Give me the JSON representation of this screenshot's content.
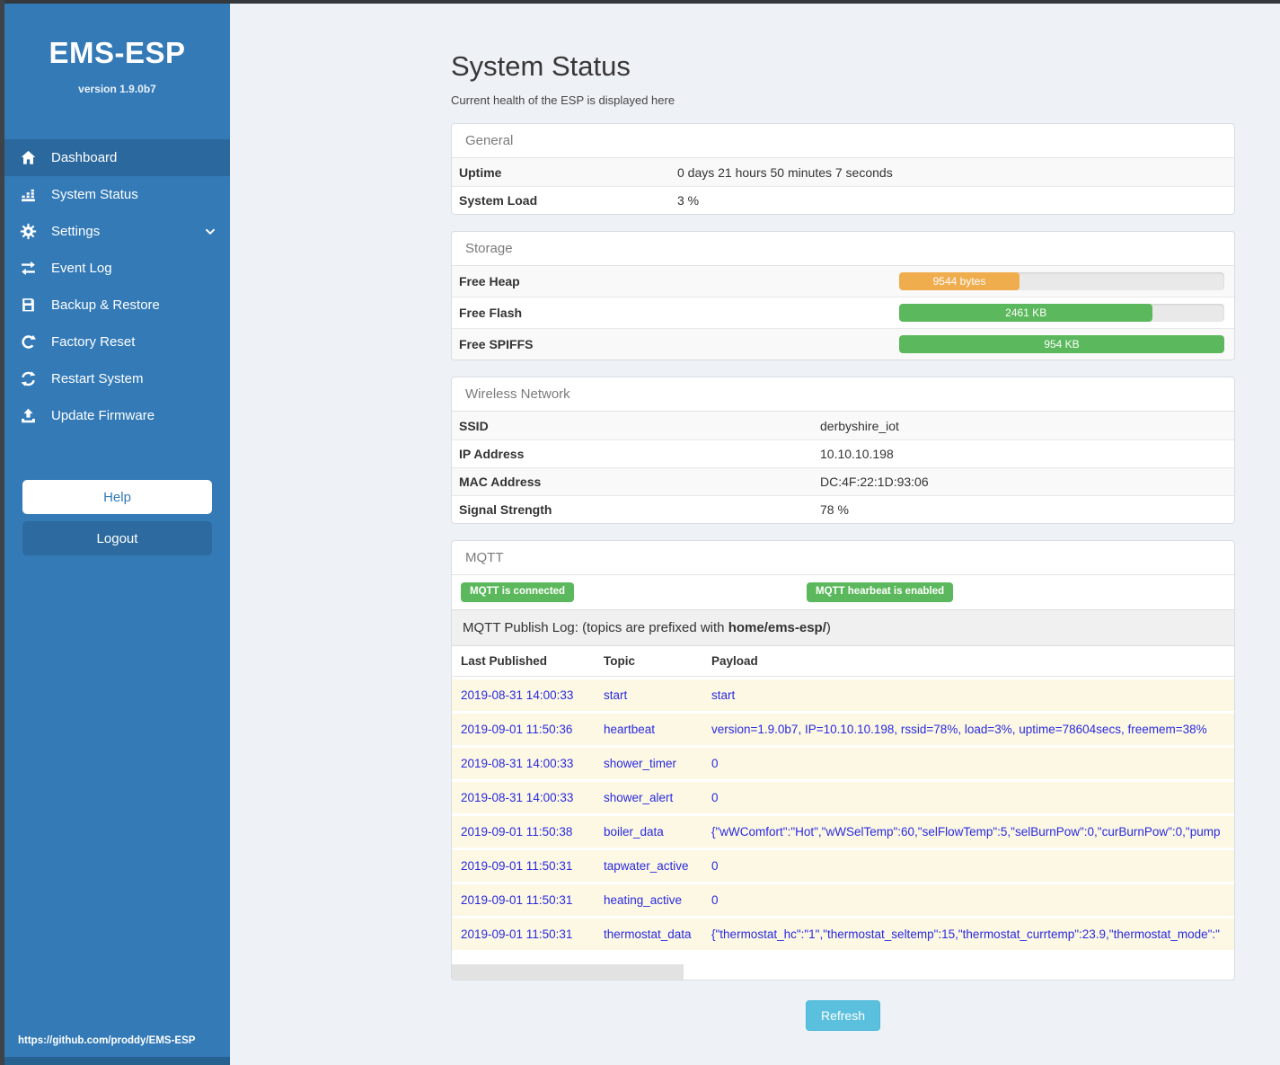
{
  "colors": {
    "sidebar": "#337ab7",
    "success": "#5cb85c",
    "warning": "#f0ad4e",
    "info": "#5bc0de",
    "beige": "#fcf8e3",
    "logblue": "#2a2ae0"
  },
  "sidebar": {
    "brand": "EMS-ESP",
    "version": "version 1.9.0b7",
    "items": [
      {
        "label": "Dashboard",
        "icon": "home-icon",
        "active": true
      },
      {
        "label": "System Status",
        "icon": "system-status-icon"
      },
      {
        "label": "Settings",
        "icon": "gear-icon",
        "chevron": true
      },
      {
        "label": "Event Log",
        "icon": "event-log-icon"
      },
      {
        "label": "Backup & Restore",
        "icon": "save-icon"
      },
      {
        "label": "Factory Reset",
        "icon": "factory-reset-icon"
      },
      {
        "label": "Restart System",
        "icon": "restart-icon"
      },
      {
        "label": "Update Firmware",
        "icon": "upload-icon"
      }
    ],
    "help_label": "Help",
    "logout_label": "Logout",
    "footer_url": "https://github.com/proddy/EMS-ESP"
  },
  "page": {
    "title": "System Status",
    "subtitle": "Current health of the ESP is displayed here",
    "refresh_label": "Refresh"
  },
  "general": {
    "heading": "General",
    "rows": [
      {
        "label": "Uptime",
        "value": "0 days 21 hours 50 minutes 7 seconds"
      },
      {
        "label": "System Load",
        "value": "3 %"
      }
    ]
  },
  "storage": {
    "heading": "Storage",
    "rows": [
      {
        "label": "Free Heap",
        "bar_text": "9544 bytes",
        "percent": 37,
        "color_key": "warning"
      },
      {
        "label": "Free Flash",
        "bar_text": "2461 KB",
        "percent": 78,
        "color_key": "success"
      },
      {
        "label": "Free SPIFFS",
        "bar_text": "954 KB",
        "percent": 100,
        "color_key": "success"
      }
    ]
  },
  "wireless": {
    "heading": "Wireless Network",
    "rows": [
      {
        "label": "SSID",
        "value": "derbyshire_iot"
      },
      {
        "label": "IP Address",
        "value": "10.10.10.198"
      },
      {
        "label": "MAC Address",
        "value": "DC:4F:22:1D:93:06"
      },
      {
        "label": "Signal Strength",
        "value": "78 %"
      }
    ]
  },
  "mqtt": {
    "heading": "MQTT",
    "badges": [
      "MQTT is connected",
      "MQTT hearbeat is enabled"
    ],
    "publish_prefix": "MQTT Publish Log: (topics are prefixed with ",
    "publish_topic": "home/ems-esp/",
    "publish_suffix": ")",
    "table": {
      "headers": [
        "Last Published",
        "Topic",
        "Payload"
      ],
      "rows": [
        [
          "2019-08-31 14:00:33",
          "start",
          "start"
        ],
        [
          "2019-09-01 11:50:36",
          "heartbeat",
          "version=1.9.0b7, IP=10.10.10.198, rssid=78%, load=3%, uptime=78604secs, freemem=38%"
        ],
        [
          "2019-08-31 14:00:33",
          "shower_timer",
          "0"
        ],
        [
          "2019-08-31 14:00:33",
          "shower_alert",
          "0"
        ],
        [
          "2019-09-01 11:50:38",
          "boiler_data",
          "{\"wWComfort\":\"Hot\",\"wWSelTemp\":60,\"selFlowTemp\":5,\"selBurnPow\":0,\"curBurnPow\":0,\"pump"
        ],
        [
          "2019-09-01 11:50:31",
          "tapwater_active",
          "0"
        ],
        [
          "2019-09-01 11:50:31",
          "heating_active",
          "0"
        ],
        [
          "2019-09-01 11:50:31",
          "thermostat_data",
          "{\"thermostat_hc\":\"1\",\"thermostat_seltemp\":15,\"thermostat_currtemp\":23.9,\"thermostat_mode\":\""
        ]
      ]
    }
  }
}
